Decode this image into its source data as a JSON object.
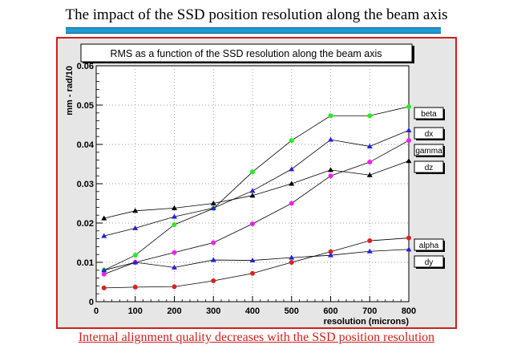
{
  "slide": {
    "title": "The impact of the SSD position resolution along the beam axis",
    "footer": "Internal alignment quality decreases with the SSD position resolution"
  },
  "colors": {
    "accent_bar": "#1e9bd6",
    "frame": "#d21e1e",
    "footer_text": "#d21e1e",
    "canvas": "#e6e6e6",
    "plot_bg": "#ffffff"
  },
  "chart_data": {
    "type": "line",
    "title": "RMS as a function of the SSD resolution along the beam axis",
    "xlabel": "resolution (microns)",
    "ylabel": "mm - rad/10",
    "xlim": [
      0,
      800
    ],
    "ylim": [
      0,
      0.06
    ],
    "grid": true,
    "legend_placement": "right",
    "x_ticks": [
      0,
      100,
      200,
      300,
      400,
      500,
      600,
      700,
      800
    ],
    "y_ticks": [
      0,
      0.01,
      0.02,
      0.03,
      0.04,
      0.05,
      0.06
    ],
    "x_tick_labels": [
      "0",
      "100",
      "200",
      "300",
      "400",
      "500",
      "600",
      "700",
      "800"
    ],
    "y_tick_labels": [
      "0",
      "0.01",
      "0.02",
      "0.03",
      "0.04",
      "0.05",
      "0.06"
    ],
    "x": [
      20,
      100,
      200,
      300,
      400,
      500,
      600,
      700,
      800
    ],
    "series": [
      {
        "name": "beta",
        "marker": "circle",
        "color": "#22ee22",
        "values": [
          0.008,
          0.0118,
          0.0196,
          0.0237,
          0.033,
          0.041,
          0.0473,
          0.0473,
          0.0496
        ]
      },
      {
        "name": "dx",
        "marker": "triangle",
        "color": "#2222dd",
        "values": [
          0.0167,
          0.0187,
          0.0216,
          0.0238,
          0.0282,
          0.0337,
          0.0412,
          0.0395,
          0.0436
        ]
      },
      {
        "name": "gamma",
        "marker": "circle",
        "color": "#ee22ee",
        "values": [
          0.007,
          0.01,
          0.0125,
          0.015,
          0.0198,
          0.025,
          0.032,
          0.0355,
          0.041
        ]
      },
      {
        "name": "dz",
        "marker": "triangle",
        "color": "#000000",
        "values": [
          0.0212,
          0.0231,
          0.0238,
          0.025,
          0.027,
          0.03,
          0.0335,
          0.0322,
          0.0358
        ]
      },
      {
        "name": "alpha",
        "marker": "circle",
        "color": "#dd2222",
        "values": [
          0.0035,
          0.0037,
          0.0038,
          0.0053,
          0.0072,
          0.01,
          0.0127,
          0.0155,
          0.0162
        ]
      },
      {
        "name": "dy",
        "marker": "triangle",
        "color": "#2222dd",
        "values": [
          0.008,
          0.01,
          0.0087,
          0.0106,
          0.0105,
          0.0112,
          0.0118,
          0.0128,
          0.0133
        ]
      }
    ]
  }
}
